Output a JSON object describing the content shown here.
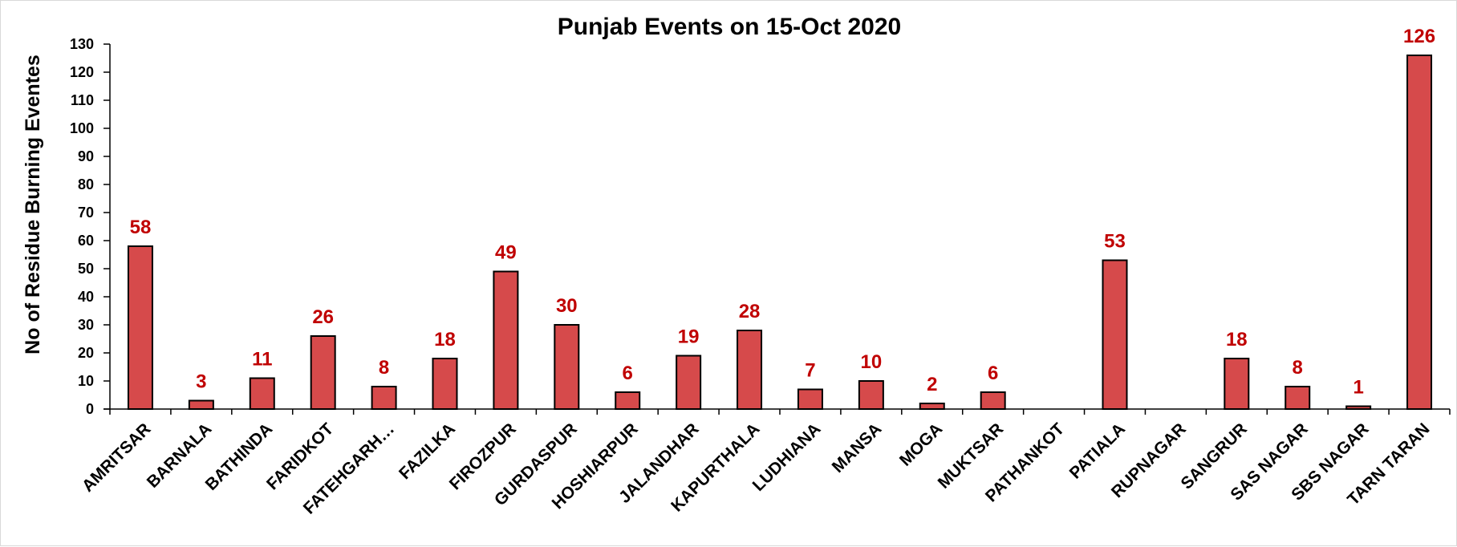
{
  "chart_data": {
    "type": "bar",
    "title": "Punjab Events on 15-Oct 2020",
    "xlabel": "",
    "ylabel": "No of Residue Burning  Eventes",
    "ylim": [
      0,
      130
    ],
    "ytick_step": 10,
    "grid": false,
    "legend": "none",
    "bar_color": "#d64a4b",
    "bar_edge_color": "#000000",
    "label_color": "#c00000",
    "categories": [
      "AMRITSAR",
      "BARNALA",
      "BATHINDA",
      "FARIDKOT",
      "FATEHGARH…",
      "FAZILKA",
      "FIROZPUR",
      "GURDASPUR",
      "HOSHIARPUR",
      "JALANDHAR",
      "KAPURTHALA",
      "LUDHIANA",
      "MANSA",
      "MOGA",
      "MUKTSAR",
      "PATHANKOT",
      "PATIALA",
      "RUPNAGAR",
      "SANGRUR",
      "SAS NAGAR",
      "SBS NAGAR",
      "TARN TARAN"
    ],
    "values": [
      58,
      3,
      11,
      26,
      8,
      18,
      49,
      30,
      6,
      19,
      28,
      7,
      10,
      2,
      6,
      null,
      53,
      null,
      18,
      8,
      1,
      126
    ]
  }
}
